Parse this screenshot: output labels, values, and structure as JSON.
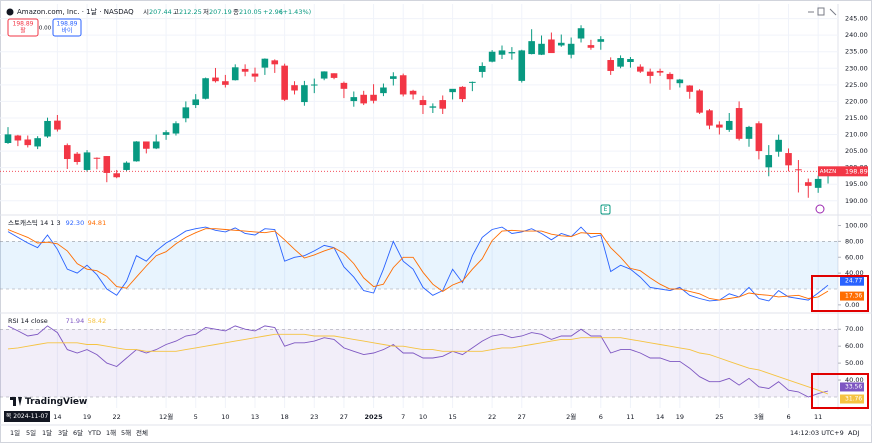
{
  "header": {
    "symbol": "Amazon.com, Inc. · 1날 · NASDAQ",
    "ohlc_labels": [
      "시",
      "고",
      "저",
      "종"
    ],
    "change": "+2.96",
    "change_pct": "(+1.43%)",
    "sell_price": "198.89",
    "sell_label": "팔",
    "spread": "0.00",
    "buy_price": "198.89",
    "buy_label": "바이",
    "earnings_marker": "E"
  },
  "footer": {
    "crosshair_date": "목 2024-11-07",
    "logo": "TradingView",
    "ranges": [
      "1일",
      "5일",
      "1달",
      "3달",
      "6달",
      "YTD",
      "1해",
      "5해",
      "전체"
    ],
    "clock": "14:12:03 UTC+9",
    "adj": "ADJ"
  },
  "chart_data": [
    {
      "type": "candlestick",
      "up_color": "#089981",
      "down_color": "#f23645",
      "symbol_tag": "AMZN",
      "grid": true,
      "ylim": [
        186,
        247
      ],
      "yticks": [
        {
          "value": 245,
          "label": "245.00"
        },
        {
          "value": 240,
          "label": "240.00"
        },
        {
          "value": 235,
          "label": "235.00"
        },
        {
          "value": 230,
          "label": "230.00"
        },
        {
          "value": 225,
          "label": "225.00"
        },
        {
          "value": 220,
          "label": "220.00"
        },
        {
          "value": 215,
          "label": "215.00"
        },
        {
          "value": 210,
          "label": "210.00"
        },
        {
          "value": 205,
          "label": "205.00"
        },
        {
          "value": 200,
          "label": "200.00"
        },
        {
          "value": 195,
          "label": "195.00"
        },
        {
          "value": 190,
          "label": "190.00"
        }
      ],
      "categories": [
        null,
        null,
        null,
        null,
        null,
        "14",
        null,
        null,
        "19",
        null,
        null,
        "22",
        null,
        null,
        null,
        null,
        "12월",
        null,
        null,
        "5",
        null,
        null,
        "10",
        null,
        null,
        "13",
        null,
        null,
        "18",
        null,
        null,
        "23",
        null,
        null,
        "27",
        null,
        null,
        "2025",
        null,
        null,
        "7",
        null,
        "10",
        null,
        null,
        "15",
        null,
        null,
        null,
        "22",
        null,
        null,
        "27",
        null,
        null,
        null,
        null,
        "2월",
        null,
        null,
        "6",
        null,
        null,
        "11",
        null,
        null,
        "14",
        null,
        "19",
        null,
        null,
        null,
        "25",
        null,
        null,
        null,
        "3월",
        null,
        null,
        "6",
        null,
        null,
        "11",
        null
      ],
      "candles": [
        [
          207.44,
          212.25,
          207.19,
          210.05
        ],
        [
          209.7,
          209.9,
          206.5,
          208.2
        ],
        [
          208.5,
          209.7,
          206.1,
          206.8
        ],
        [
          206.4,
          209.5,
          205.6,
          208.9
        ],
        [
          209.4,
          215.1,
          209.0,
          214.1
        ],
        [
          214.2,
          215.9,
          210.9,
          211.5
        ],
        [
          206.8,
          207.3,
          199.6,
          202.6
        ],
        [
          204.2,
          204.7,
          200.9,
          201.7
        ],
        [
          199.3,
          205.3,
          198.8,
          204.6
        ],
        [
          202.98,
          203.1,
          199.5,
          202.9
        ],
        [
          203.5,
          203.5,
          195.6,
          198.4
        ],
        [
          198.3,
          199.3,
          196.8,
          197.1
        ],
        [
          199.3,
          201.9,
          199.0,
          201.5
        ],
        [
          201.9,
          208.0,
          201.8,
          207.9
        ],
        [
          207.9,
          207.9,
          204.3,
          205.7
        ],
        [
          205.8,
          209.99,
          205.6,
          207.9
        ],
        [
          209.9,
          211.3,
          208.4,
          210.7
        ],
        [
          210.3,
          214.0,
          209.7,
          213.4
        ],
        [
          214.9,
          220.0,
          213.7,
          218.2
        ],
        [
          218.9,
          222.2,
          218.0,
          220.6
        ],
        [
          220.8,
          227.2,
          220.6,
          227.0
        ],
        [
          227.2,
          230.1,
          225.7,
          226.1
        ],
        [
          226.1,
          228.0,
          224.2,
          225.0
        ],
        [
          226.4,
          231.2,
          226.3,
          230.3
        ],
        [
          229.8,
          231.2,
          227.6,
          228.97
        ],
        [
          228.4,
          230.2,
          225.9,
          227.5
        ],
        [
          230.2,
          233.0,
          228.0,
          232.9
        ],
        [
          232.4,
          232.7,
          228.6,
          231.2
        ],
        [
          230.8,
          231.4,
          220.1,
          220.5
        ],
        [
          224.9,
          226.1,
          222.1,
          223.3
        ],
        [
          219.8,
          226.2,
          218.7,
          224.9
        ],
        [
          225.0,
          226.9,
          222.5,
          225.1
        ],
        [
          226.9,
          229.1,
          226.4,
          229.05
        ],
        [
          228.5,
          228.5,
          226.7,
          227.1
        ],
        [
          225.6,
          226.0,
          221.0,
          223.8
        ],
        [
          220.1,
          223.0,
          218.4,
          221.3
        ],
        [
          222.0,
          223.2,
          218.9,
          219.4
        ],
        [
          222.0,
          225.2,
          219.4,
          220.2
        ],
        [
          222.5,
          225.4,
          221.6,
          224.2
        ],
        [
          226.8,
          228.8,
          224.8,
          227.6
        ],
        [
          227.9,
          228.4,
          221.5,
          222.1
        ],
        [
          223.2,
          223.5,
          220.6,
          222.1
        ],
        [
          220.4,
          221.7,
          216.2,
          218.9
        ],
        [
          218.1,
          219.4,
          216.5,
          218.5
        ],
        [
          220.4,
          221.8,
          216.2,
          217.8
        ],
        [
          222.8,
          223.6,
          220.6,
          223.8
        ],
        [
          224.4,
          224.6,
          219.8,
          220.7
        ],
        [
          225.8,
          226.0,
          223.1,
          225.9
        ],
        [
          228.9,
          231.8,
          227.2,
          230.7
        ],
        [
          232.0,
          235.5,
          231.8,
          235.0
        ],
        [
          234.1,
          236.9,
          232.8,
          235.4
        ],
        [
          234.5,
          236.4,
          232.6,
          234.9
        ],
        [
          226.2,
          235.6,
          225.7,
          235.4
        ],
        [
          234.3,
          241.8,
          234.2,
          238.2
        ],
        [
          234.1,
          239.9,
          234.0,
          237.4
        ],
        [
          238.7,
          240.8,
          235.0,
          234.6
        ],
        [
          236.9,
          240.2,
          236.5,
          237.7
        ],
        [
          234.1,
          239.3,
          233.0,
          237.4
        ],
        [
          239.0,
          243.0,
          237.8,
          242.1
        ],
        [
          237.0,
          238.6,
          235.6,
          236.2
        ],
        [
          238.0,
          239.7,
          235.6,
          238.8
        ],
        [
          232.5,
          233.3,
          228.0,
          229.2
        ],
        [
          230.5,
          233.9,
          230.0,
          233.1
        ],
        [
          231.9,
          233.4,
          230.2,
          232.8
        ],
        [
          230.5,
          231.2,
          228.6,
          229.0
        ],
        [
          229.0,
          229.9,
          225.4,
          227.7
        ],
        [
          229.2,
          229.9,
          227.7,
          228.7
        ],
        [
          228.3,
          228.8,
          223.5,
          226.7
        ],
        [
          225.5,
          226.8,
          224.2,
          226.6
        ],
        [
          224.8,
          224.9,
          220.8,
          222.9
        ],
        [
          223.3,
          223.7,
          216.2,
          216.6
        ],
        [
          217.3,
          217.7,
          211.6,
          212.7
        ],
        [
          213.0,
          214.0,
          210.0,
          212.1
        ],
        [
          211.4,
          216.5,
          210.8,
          214.1
        ],
        [
          218.0,
          220.0,
          208.2,
          208.7
        ],
        [
          208.7,
          212.6,
          206.3,
          212.3
        ],
        [
          213.4,
          214.0,
          202.5,
          205.0
        ],
        [
          200.1,
          206.8,
          197.4,
          203.8
        ],
        [
          204.8,
          209.98,
          203.3,
          208.4
        ],
        [
          204.4,
          205.8,
          198.9,
          200.7
        ],
        [
          199.5,
          202.3,
          192.5,
          199.25
        ],
        [
          195.6,
          196.7,
          190.9,
          194.5
        ],
        [
          193.9,
          197.6,
          192.4,
          196.6
        ],
        [
          198.0,
          199.6,
          195.2,
          198.89
        ]
      ]
    },
    {
      "type": "line",
      "title": "스토캐스틱 14 1 3",
      "legend_labels": [
        "92.30",
        "94.81"
      ],
      "band": [
        20,
        80
      ],
      "band_color": "#2196f3",
      "ylim": [
        -9,
        112
      ],
      "yticks": [
        {
          "value": 100,
          "label": "100.00"
        },
        {
          "value": 80,
          "label": "80.00"
        },
        {
          "value": 60,
          "label": "60.00"
        },
        {
          "value": 40,
          "label": "40.00"
        },
        {
          "value": 0,
          "label": "0.00"
        }
      ],
      "series": [
        {
          "color": "#2962ff",
          "values": [
            92.3,
            85,
            78,
            72,
            88,
            70,
            45,
            40,
            50,
            38,
            20,
            12,
            30,
            62,
            55,
            68,
            78,
            85,
            93,
            96,
            98,
            94,
            92,
            97,
            90,
            88,
            96,
            95,
            55,
            60,
            62,
            68,
            75,
            72,
            48,
            35,
            18,
            15,
            45,
            80,
            55,
            45,
            22,
            12,
            18,
            45,
            28,
            62,
            85,
            95,
            98,
            90,
            92,
            96,
            90,
            82,
            90,
            86,
            98,
            85,
            88,
            42,
            50,
            45,
            35,
            22,
            20,
            18,
            22,
            12,
            8,
            5,
            6,
            14,
            10,
            22,
            8,
            5,
            18,
            10,
            8,
            6,
            15,
            24.77
          ]
        },
        {
          "color": "#ff6d00",
          "values": [
            94.81,
            90,
            85,
            78,
            79,
            77,
            68,
            52,
            45,
            43,
            36,
            23,
            21,
            35,
            49,
            62,
            67,
            77,
            85,
            91,
            96,
            96,
            95,
            94,
            93,
            92,
            91,
            93,
            82,
            70,
            59,
            63,
            68,
            72,
            65,
            52,
            34,
            23,
            26,
            47,
            60,
            60,
            41,
            26,
            17,
            25,
            30,
            45,
            58,
            81,
            93,
            94,
            93,
            93,
            93,
            89,
            87,
            86,
            91,
            90,
            90,
            72,
            60,
            46,
            43,
            34,
            26,
            20,
            20,
            17,
            14,
            8,
            6,
            8,
            10,
            15,
            13,
            12,
            10,
            11,
            12,
            8,
            10,
            17.36
          ]
        }
      ]
    },
    {
      "type": "line",
      "title": "RSI 14 close",
      "legend_labels": [
        "71.94",
        "58.42"
      ],
      "band": [
        30,
        70
      ],
      "band_color": "#7e57c2",
      "ylim": [
        23.5,
        79
      ],
      "yticks": [
        {
          "value": 70,
          "label": "70.00"
        },
        {
          "value": 60,
          "label": "60.00"
        },
        {
          "value": 50,
          "label": "50.00"
        },
        {
          "value": 40,
          "label": "40.00"
        }
      ],
      "series": [
        {
          "color": "#7e57c2",
          "values": [
            71.94,
            69,
            66,
            67,
            72,
            68,
            58,
            56,
            58,
            55,
            50,
            48,
            53,
            58,
            56,
            58,
            61,
            63,
            66,
            67,
            71,
            70,
            69,
            72,
            70,
            69,
            72,
            71,
            60,
            62,
            62,
            63,
            65,
            64,
            59,
            57,
            55,
            56,
            58,
            61,
            56,
            56,
            53,
            53,
            54,
            57,
            55,
            59,
            63,
            66,
            67,
            65,
            66,
            68,
            67,
            64,
            66,
            66,
            70,
            66,
            66,
            56,
            58,
            58,
            56,
            53,
            53,
            51,
            51,
            47,
            42,
            39,
            39,
            41,
            37,
            41,
            36,
            35,
            39,
            34,
            33,
            30,
            32,
            33.56
          ]
        },
        {
          "color": "#f5c342",
          "values": [
            58.42,
            59,
            60,
            61,
            62,
            62,
            62,
            62,
            61,
            61,
            60,
            59,
            58,
            58,
            57,
            57,
            57,
            57,
            58,
            59,
            60,
            61,
            62,
            63,
            64,
            65,
            66,
            67,
            67,
            67,
            67,
            66,
            66,
            66,
            65,
            64,
            63,
            62,
            61,
            60,
            60,
            59,
            58,
            58,
            57,
            57,
            57,
            57,
            57,
            58,
            59,
            59,
            60,
            61,
            62,
            63,
            64,
            64,
            65,
            65,
            65,
            65,
            65,
            64,
            63,
            62,
            61,
            60,
            59,
            58,
            56,
            55,
            53,
            51,
            49,
            47,
            46,
            44,
            42,
            40,
            38,
            36,
            34,
            31.76
          ]
        }
      ]
    }
  ]
}
